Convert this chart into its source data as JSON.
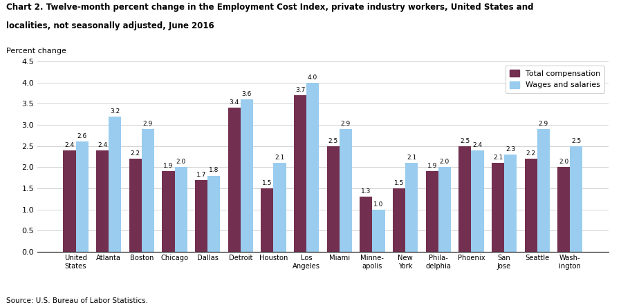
{
  "categories": [
    "United\nStates",
    "Atlanta",
    "Boston",
    "Chicago",
    "Dallas",
    "Detroit",
    "Houston",
    "Los\nAngeles",
    "Miami",
    "Minne-\napolis",
    "New\nYork",
    "Phila-\ndelphia",
    "Phoenix",
    "San\nJose",
    "Seattle",
    "Wash-\nington"
  ],
  "total_compensation": [
    2.4,
    2.4,
    2.2,
    1.9,
    1.7,
    3.4,
    1.5,
    3.7,
    2.5,
    1.3,
    1.5,
    1.9,
    2.5,
    2.1,
    2.2,
    2.0
  ],
  "wages_and_salaries": [
    2.6,
    3.2,
    2.9,
    2.0,
    1.8,
    3.6,
    2.1,
    4.0,
    2.9,
    1.0,
    2.1,
    2.0,
    2.4,
    2.3,
    2.9,
    2.5
  ],
  "color_total": "#722F4F",
  "color_wages": "#99CCEE",
  "title_line1": "Chart 2. Twelve-month percent change in the Employment Cost Index, private industry workers, United States and",
  "title_line2": "localities, not seasonally adjusted, June 2016",
  "ylabel": "Percent change",
  "ylim": [
    0,
    4.5
  ],
  "yticks": [
    0.0,
    0.5,
    1.0,
    1.5,
    2.0,
    2.5,
    3.0,
    3.5,
    4.0,
    4.5
  ],
  "legend_total": "Total compensation",
  "legend_wages": "Wages and salaries",
  "source": "Source: U.S. Bureau of Labor Statistics.",
  "bar_width": 0.38
}
